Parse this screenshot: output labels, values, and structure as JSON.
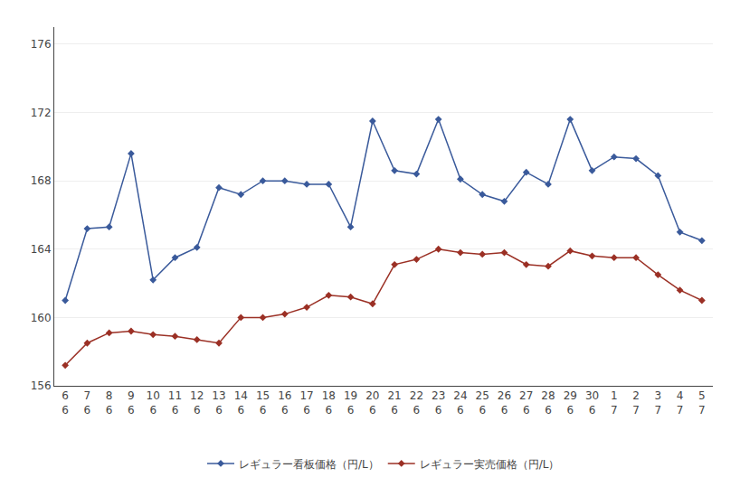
{
  "chart_data": {
    "type": "line",
    "categories": [
      "6\n6",
      "7\n6",
      "8\n6",
      "9\n6",
      "10\n6",
      "11\n6",
      "12\n6",
      "13\n6",
      "14\n6",
      "15\n6",
      "16\n6",
      "17\n6",
      "18\n6",
      "19\n6",
      "20\n6",
      "21\n6",
      "22\n6",
      "23\n6",
      "24\n6",
      "25\n6",
      "26\n6",
      "27\n6",
      "28\n6",
      "29\n6",
      "30\n6",
      "1\n7",
      "2\n7",
      "3\n7",
      "4\n7",
      "5\n7"
    ],
    "series": [
      {
        "name": "レギュラー看板価格（円/L）",
        "color": "#3a5a9b",
        "marker": "diamond",
        "line_style": "solid",
        "values": [
          161.0,
          165.2,
          165.3,
          169.6,
          162.2,
          163.5,
          164.1,
          167.6,
          167.2,
          168.0,
          168.0,
          167.8,
          167.8,
          165.3,
          171.5,
          168.6,
          168.4,
          171.6,
          168.1,
          167.2,
          166.8,
          168.5,
          167.8,
          171.6,
          168.6,
          169.4,
          169.3,
          168.3,
          165.0,
          164.5
        ]
      },
      {
        "name": "レギュラー実売価格（円/L）",
        "color": "#9b3025",
        "marker": "diamond",
        "line_style": "solid",
        "values": [
          157.2,
          158.5,
          159.1,
          159.2,
          159.0,
          158.9,
          158.7,
          158.5,
          160.0,
          160.0,
          160.2,
          160.6,
          161.3,
          161.2,
          160.8,
          163.1,
          163.4,
          164.0,
          163.8,
          163.7,
          163.8,
          163.1,
          163.0,
          163.9,
          163.6,
          163.5,
          163.5,
          162.5,
          161.6,
          161.0
        ]
      }
    ],
    "ylim": [
      156,
      177
    ],
    "yticks": [
      156,
      160,
      164,
      168,
      172,
      176
    ],
    "grid": true,
    "legend": "bottom"
  }
}
